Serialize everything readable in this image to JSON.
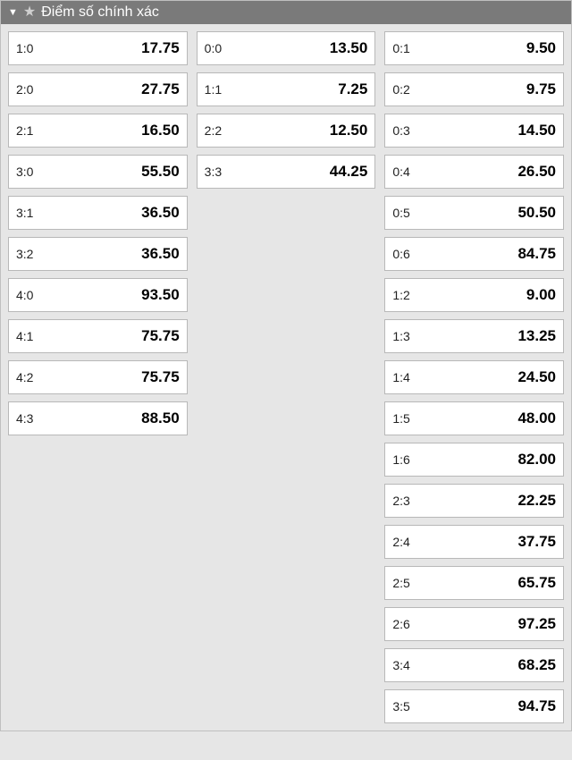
{
  "header": {
    "title": "Điểm số chính xác"
  },
  "columns": [
    {
      "items": [
        {
          "score": "1:0",
          "odds": "17.75"
        },
        {
          "score": "2:0",
          "odds": "27.75"
        },
        {
          "score": "2:1",
          "odds": "16.50"
        },
        {
          "score": "3:0",
          "odds": "55.50"
        },
        {
          "score": "3:1",
          "odds": "36.50"
        },
        {
          "score": "3:2",
          "odds": "36.50"
        },
        {
          "score": "4:0",
          "odds": "93.50"
        },
        {
          "score": "4:1",
          "odds": "75.75"
        },
        {
          "score": "4:2",
          "odds": "75.75"
        },
        {
          "score": "4:3",
          "odds": "88.50"
        }
      ]
    },
    {
      "items": [
        {
          "score": "0:0",
          "odds": "13.50"
        },
        {
          "score": "1:1",
          "odds": "7.25"
        },
        {
          "score": "2:2",
          "odds": "12.50"
        },
        {
          "score": "3:3",
          "odds": "44.25"
        }
      ]
    },
    {
      "items": [
        {
          "score": "0:1",
          "odds": "9.50"
        },
        {
          "score": "0:2",
          "odds": "9.75"
        },
        {
          "score": "0:3",
          "odds": "14.50"
        },
        {
          "score": "0:4",
          "odds": "26.50"
        },
        {
          "score": "0:5",
          "odds": "50.50"
        },
        {
          "score": "0:6",
          "odds": "84.75"
        },
        {
          "score": "1:2",
          "odds": "9.00"
        },
        {
          "score": "1:3",
          "odds": "13.25"
        },
        {
          "score": "1:4",
          "odds": "24.50"
        },
        {
          "score": "1:5",
          "odds": "48.00"
        },
        {
          "score": "1:6",
          "odds": "82.00"
        },
        {
          "score": "2:3",
          "odds": "22.25"
        },
        {
          "score": "2:4",
          "odds": "37.75"
        },
        {
          "score": "2:5",
          "odds": "65.75"
        },
        {
          "score": "2:6",
          "odds": "97.25"
        },
        {
          "score": "3:4",
          "odds": "68.25"
        },
        {
          "score": "3:5",
          "odds": "94.75"
        }
      ]
    }
  ]
}
